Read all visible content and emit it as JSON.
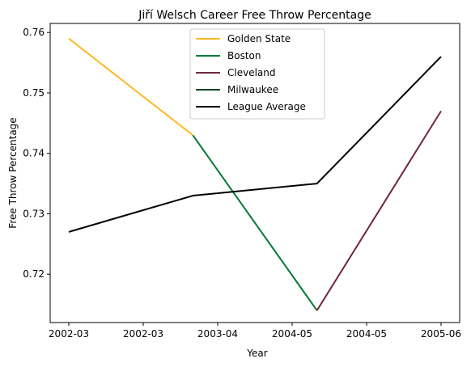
{
  "chart_data": {
    "type": "line",
    "title": "Jiří Welsch Career Free Throw Percentage",
    "xlabel": "Year",
    "ylabel": "Free Throw Percentage",
    "x_tick_labels": [
      "2002-03",
      "2002-03",
      "2003-04",
      "2004-05",
      "2004-05",
      "2005-06"
    ],
    "x_range": [
      -0.15,
      3.15
    ],
    "ylim": [
      0.712,
      0.7615
    ],
    "y_ticks": [
      0.72,
      0.73,
      0.74,
      0.75,
      0.76
    ],
    "grid": false,
    "legend_position": "upper-center",
    "series": [
      {
        "name": "Golden State",
        "color": "#FDB927",
        "x": [
          0,
          1
        ],
        "y": [
          0.759,
          0.743
        ]
      },
      {
        "name": "Boston",
        "color": "#007A33",
        "x": [
          1,
          2
        ],
        "y": [
          0.743,
          0.714
        ]
      },
      {
        "name": "Cleveland",
        "color": "#6F263D",
        "x": [
          2,
          3
        ],
        "y": [
          0.714,
          0.747
        ]
      },
      {
        "name": "Milwaukee",
        "color": "#00471B",
        "x": [],
        "y": []
      },
      {
        "name": "League Average",
        "color": "#000000",
        "x": [
          0,
          1,
          2,
          3
        ],
        "y": [
          0.727,
          0.733,
          0.735,
          0.756
        ]
      }
    ]
  }
}
